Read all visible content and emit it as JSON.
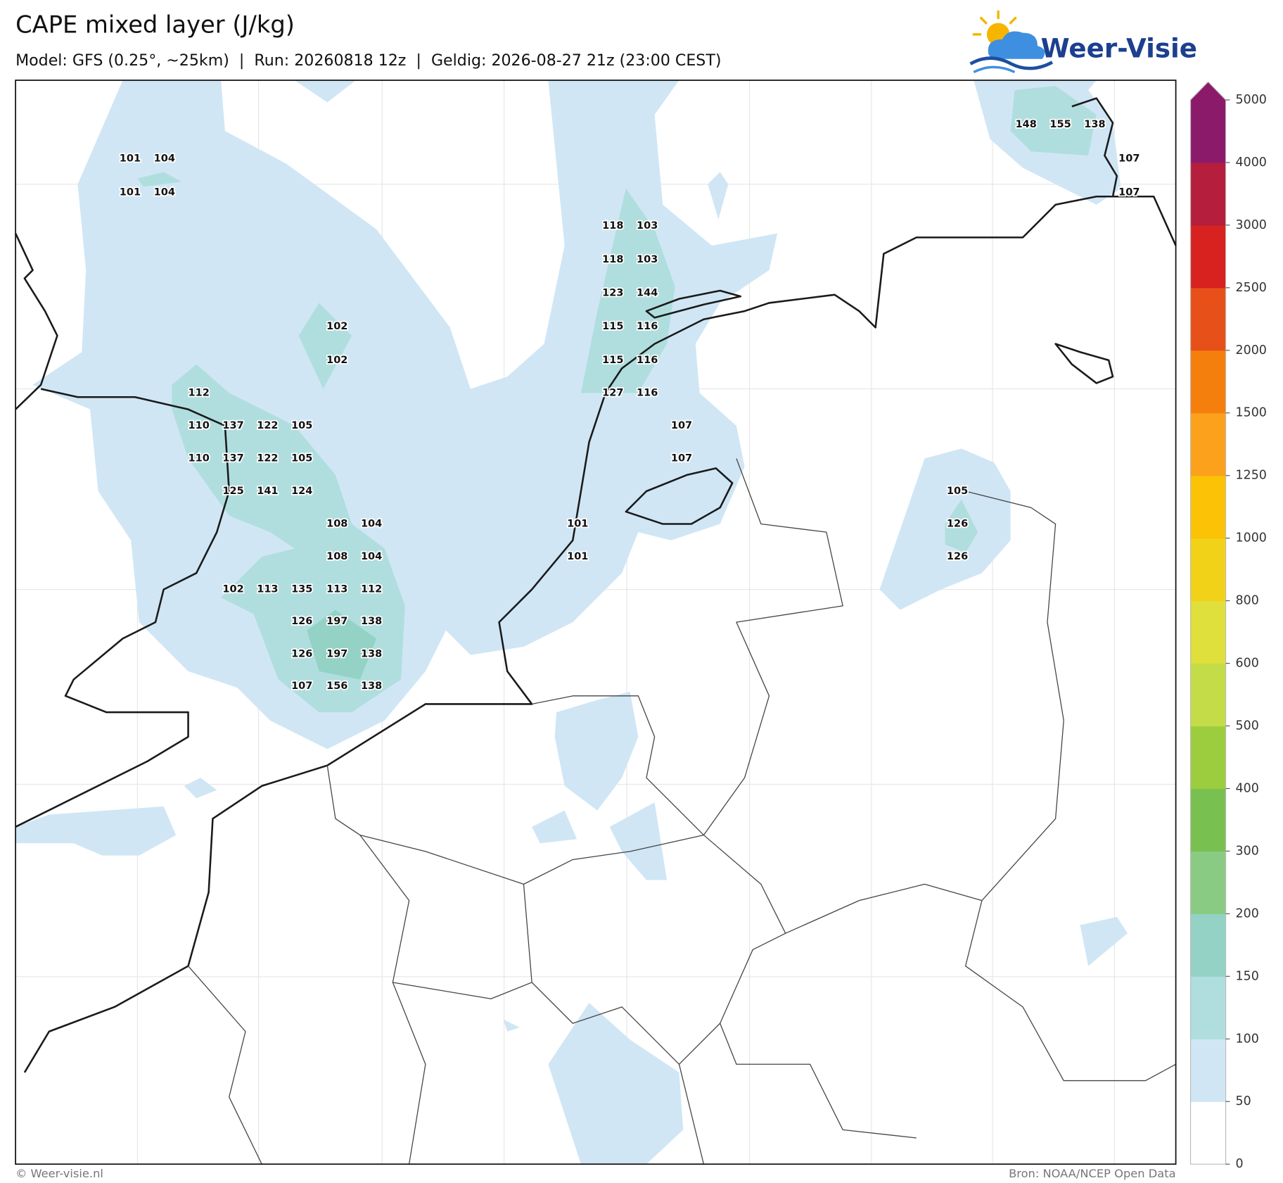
{
  "header": {
    "title": "CAPE mixed layer (J/kg)",
    "subtitle": "Model: GFS (0.25°, ~25km)  |  Run: 20260818 12z  |  Geldig: 2026-08-27 21z (23:00 CEST)"
  },
  "logo": "Weer-Visie",
  "map": {
    "labels": [
      101,
      104,
      101,
      104,
      118,
      103,
      118,
      103,
      123,
      144,
      102,
      115,
      116,
      102,
      115,
      116,
      112,
      127,
      116,
      110,
      137,
      122,
      105,
      107,
      110,
      137,
      122,
      105,
      107,
      125,
      141,
      124,
      105,
      108,
      104,
      101,
      126,
      108,
      104,
      101,
      126,
      102,
      113,
      135,
      113,
      112,
      126,
      197,
      138,
      126,
      197,
      138,
      107,
      156,
      138,
      148,
      155,
      138,
      107,
      107
    ]
  },
  "colorbar": {
    "ticks": [
      0,
      50,
      100,
      150,
      200,
      300,
      400,
      500,
      600,
      800,
      1000,
      1250,
      1500,
      2000,
      2500,
      3000,
      4000,
      5000
    ],
    "colors": [
      "#ffffff",
      "#d0e6f5",
      "#b0dede",
      "#93d2c5",
      "#8acb83",
      "#78c150",
      "#9ccd3e",
      "#c4dc48",
      "#e0e03c",
      "#f2d218",
      "#fbc206",
      "#fba11c",
      "#f57f0d",
      "#e8501a",
      "#d8221f",
      "#b51e3c",
      "#8b1a6b"
    ]
  },
  "footer": {
    "left": "© Weer-visie.nl",
    "right": "Bron: NOAA/NCEP Open Data"
  }
}
